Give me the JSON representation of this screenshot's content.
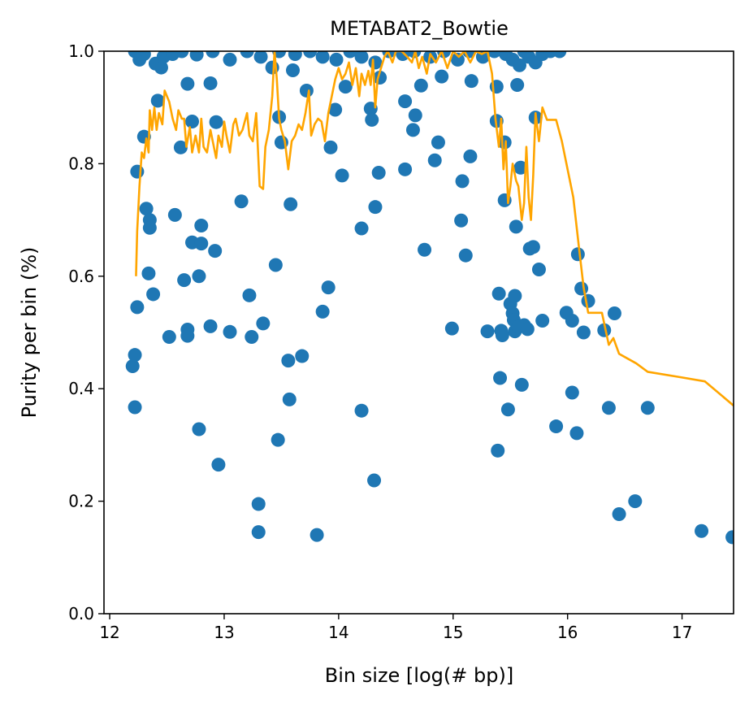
{
  "chart_data": {
    "type": "scatter",
    "title": "METABAT2_Bowtie",
    "xlabel": "Bin size [log(# bp)]",
    "ylabel": "Purity per bin (%)",
    "xlim": [
      11.95,
      17.45
    ],
    "ylim": [
      0.0,
      1.0
    ],
    "xticks": [
      12,
      13,
      14,
      15,
      16,
      17
    ],
    "xtick_labels": [
      "12",
      "13",
      "14",
      "15",
      "16",
      "17"
    ],
    "yticks": [
      0.0,
      0.2,
      0.4,
      0.6,
      0.8,
      1.0
    ],
    "ytick_labels": [
      "0.0",
      "0.2",
      "0.4",
      "0.6",
      "0.8",
      "1.0"
    ],
    "grid": false,
    "colors": {
      "points": "#1f77b4",
      "line": "#ffa500"
    },
    "series": [
      {
        "kind": "scatter",
        "points": [
          [
            12.24,
            0.786
          ],
          [
            12.2,
            0.44
          ],
          [
            12.22,
            0.46
          ],
          [
            12.22,
            0.367
          ],
          [
            12.24,
            0.545
          ],
          [
            12.3,
            0.848
          ],
          [
            12.32,
            0.72
          ],
          [
            12.35,
            0.7
          ],
          [
            12.35,
            0.686
          ],
          [
            12.34,
            0.605
          ],
          [
            12.38,
            0.568
          ],
          [
            12.42,
            0.912
          ],
          [
            12.45,
            0.971
          ],
          [
            12.52,
            0.492
          ],
          [
            12.57,
            0.709
          ],
          [
            12.62,
            0.829
          ],
          [
            12.65,
            0.593
          ],
          [
            12.68,
            0.942
          ],
          [
            12.68,
            0.505
          ],
          [
            12.68,
            0.494
          ],
          [
            12.72,
            0.875
          ],
          [
            12.72,
            0.66
          ],
          [
            12.78,
            0.328
          ],
          [
            12.78,
            0.6
          ],
          [
            12.8,
            0.69
          ],
          [
            12.8,
            0.658
          ],
          [
            12.88,
            0.943
          ],
          [
            12.88,
            0.511
          ],
          [
            12.92,
            0.645
          ],
          [
            12.93,
            0.874
          ],
          [
            12.95,
            0.265
          ],
          [
            13.05,
            0.501
          ],
          [
            13.15,
            0.733
          ],
          [
            13.22,
            0.566
          ],
          [
            13.24,
            0.492
          ],
          [
            13.3,
            0.195
          ],
          [
            13.3,
            0.145
          ],
          [
            13.34,
            0.516
          ],
          [
            13.42,
            0.971
          ],
          [
            13.45,
            0.62
          ],
          [
            13.47,
            0.309
          ],
          [
            13.48,
            0.883
          ],
          [
            13.5,
            0.838
          ],
          [
            13.56,
            0.45
          ],
          [
            13.57,
            0.381
          ],
          [
            13.58,
            0.728
          ],
          [
            13.6,
            0.966
          ],
          [
            13.68,
            0.458
          ],
          [
            13.72,
            0.93
          ],
          [
            13.81,
            0.14
          ],
          [
            13.86,
            0.537
          ],
          [
            13.91,
            0.58
          ],
          [
            13.93,
            0.829
          ],
          [
            13.97,
            0.896
          ],
          [
            14.03,
            0.779
          ],
          [
            14.06,
            0.937
          ],
          [
            14.2,
            0.685
          ],
          [
            14.2,
            0.361
          ],
          [
            14.28,
            0.898
          ],
          [
            14.29,
            0.878
          ],
          [
            14.31,
            0.237
          ],
          [
            14.32,
            0.723
          ],
          [
            14.35,
            0.784
          ],
          [
            14.36,
            0.953
          ],
          [
            14.58,
            0.911
          ],
          [
            14.58,
            0.79
          ],
          [
            14.65,
            0.86
          ],
          [
            14.67,
            0.886
          ],
          [
            14.72,
            0.939
          ],
          [
            14.75,
            0.647
          ],
          [
            14.84,
            0.806
          ],
          [
            14.87,
            0.838
          ],
          [
            14.9,
            0.955
          ],
          [
            14.99,
            0.507
          ],
          [
            15.07,
            0.699
          ],
          [
            15.08,
            0.769
          ],
          [
            15.11,
            0.637
          ],
          [
            15.15,
            0.813
          ],
          [
            15.16,
            0.947
          ],
          [
            15.3,
            0.502
          ],
          [
            15.38,
            0.876
          ],
          [
            15.38,
            0.937
          ],
          [
            15.39,
            0.29
          ],
          [
            15.4,
            0.569
          ],
          [
            15.41,
            0.419
          ],
          [
            15.42,
            0.503
          ],
          [
            15.43,
            0.495
          ],
          [
            15.45,
            0.838
          ],
          [
            15.45,
            0.735
          ],
          [
            15.48,
            0.363
          ],
          [
            15.5,
            0.551
          ],
          [
            15.52,
            0.534
          ],
          [
            15.53,
            0.522
          ],
          [
            15.54,
            0.565
          ],
          [
            15.54,
            0.502
          ],
          [
            15.55,
            0.688
          ],
          [
            15.56,
            0.94
          ],
          [
            15.57,
            0.51
          ],
          [
            15.59,
            0.793
          ],
          [
            15.6,
            0.407
          ],
          [
            15.62,
            0.513
          ],
          [
            15.65,
            0.506
          ],
          [
            15.67,
            0.649
          ],
          [
            15.7,
            0.652
          ],
          [
            15.72,
            0.882
          ],
          [
            15.75,
            0.612
          ],
          [
            15.78,
            0.521
          ],
          [
            15.9,
            0.333
          ],
          [
            15.99,
            0.535
          ],
          [
            16.04,
            0.393
          ],
          [
            16.04,
            0.521
          ],
          [
            16.08,
            0.321
          ],
          [
            16.09,
            0.639
          ],
          [
            16.12,
            0.578
          ],
          [
            16.14,
            0.5
          ],
          [
            16.18,
            0.556
          ],
          [
            16.32,
            0.504
          ],
          [
            16.36,
            0.366
          ],
          [
            16.41,
            0.534
          ],
          [
            16.45,
            0.177
          ],
          [
            16.59,
            0.2
          ],
          [
            16.7,
            0.366
          ],
          [
            17.17,
            0.147
          ],
          [
            17.44,
            0.136
          ],
          [
            12.22,
            1.0
          ],
          [
            12.26,
            0.985
          ],
          [
            12.3,
            0.995
          ],
          [
            12.4,
            0.978
          ],
          [
            12.47,
            0.99
          ],
          [
            12.55,
            0.995
          ],
          [
            12.63,
            1.0
          ],
          [
            12.76,
            0.994
          ],
          [
            12.9,
            1.0
          ],
          [
            13.05,
            0.985
          ],
          [
            13.2,
            1.0
          ],
          [
            13.32,
            0.99
          ],
          [
            13.48,
            1.0
          ],
          [
            13.62,
            0.995
          ],
          [
            13.75,
            1.0
          ],
          [
            13.86,
            0.99
          ],
          [
            13.98,
            0.985
          ],
          [
            14.1,
            1.0
          ],
          [
            14.2,
            0.99
          ],
          [
            14.32,
            0.98
          ],
          [
            14.44,
            1.0
          ],
          [
            14.56,
            0.995
          ],
          [
            14.66,
            1.0
          ],
          [
            14.8,
            0.99
          ],
          [
            14.92,
            1.0
          ],
          [
            15.04,
            0.985
          ],
          [
            15.14,
            1.0
          ],
          [
            15.26,
            0.99
          ],
          [
            15.36,
            1.0
          ],
          [
            15.46,
            0.995
          ],
          [
            15.52,
            0.985
          ],
          [
            15.58,
            0.975
          ],
          [
            15.62,
            1.0
          ],
          [
            15.66,
            0.99
          ],
          [
            15.72,
            0.98
          ],
          [
            15.78,
            0.995
          ],
          [
            15.85,
            1.0
          ],
          [
            15.93,
            1.0
          ]
        ]
      },
      {
        "kind": "line",
        "points": [
          [
            12.23,
            0.6
          ],
          [
            12.24,
            0.68
          ],
          [
            12.26,
            0.76
          ],
          [
            12.28,
            0.82
          ],
          [
            12.3,
            0.81
          ],
          [
            12.32,
            0.845
          ],
          [
            12.34,
            0.82
          ],
          [
            12.35,
            0.895
          ],
          [
            12.37,
            0.86
          ],
          [
            12.39,
            0.9
          ],
          [
            12.41,
            0.86
          ],
          [
            12.43,
            0.89
          ],
          [
            12.46,
            0.87
          ],
          [
            12.48,
            0.93
          ],
          [
            12.52,
            0.91
          ],
          [
            12.55,
            0.88
          ],
          [
            12.58,
            0.86
          ],
          [
            12.6,
            0.895
          ],
          [
            12.63,
            0.88
          ],
          [
            12.65,
            0.88
          ],
          [
            12.67,
            0.83
          ],
          [
            12.7,
            0.865
          ],
          [
            12.72,
            0.82
          ],
          [
            12.75,
            0.85
          ],
          [
            12.78,
            0.82
          ],
          [
            12.8,
            0.88
          ],
          [
            12.82,
            0.83
          ],
          [
            12.85,
            0.82
          ],
          [
            12.88,
            0.86
          ],
          [
            12.9,
            0.84
          ],
          [
            12.93,
            0.81
          ],
          [
            12.95,
            0.85
          ],
          [
            12.98,
            0.83
          ],
          [
            13.0,
            0.875
          ],
          [
            13.02,
            0.85
          ],
          [
            13.05,
            0.82
          ],
          [
            13.08,
            0.87
          ],
          [
            13.1,
            0.88
          ],
          [
            13.13,
            0.85
          ],
          [
            13.16,
            0.86
          ],
          [
            13.2,
            0.89
          ],
          [
            13.22,
            0.85
          ],
          [
            13.25,
            0.84
          ],
          [
            13.28,
            0.89
          ],
          [
            13.31,
            0.76
          ],
          [
            13.34,
            0.755
          ],
          [
            13.36,
            0.83
          ],
          [
            13.39,
            0.86
          ],
          [
            13.42,
            0.92
          ],
          [
            13.44,
            1.0
          ],
          [
            13.46,
            0.95
          ],
          [
            13.48,
            0.88
          ],
          [
            13.5,
            0.86
          ],
          [
            13.53,
            0.84
          ],
          [
            13.56,
            0.79
          ],
          [
            13.59,
            0.84
          ],
          [
            13.62,
            0.85
          ],
          [
            13.65,
            0.87
          ],
          [
            13.68,
            0.86
          ],
          [
            13.71,
            0.89
          ],
          [
            13.74,
            0.93
          ],
          [
            13.76,
            0.85
          ],
          [
            13.79,
            0.87
          ],
          [
            13.82,
            0.88
          ],
          [
            13.85,
            0.875
          ],
          [
            13.88,
            0.84
          ],
          [
            13.91,
            0.89
          ],
          [
            13.94,
            0.92
          ],
          [
            13.97,
            0.95
          ],
          [
            14.0,
            0.97
          ],
          [
            14.03,
            0.95
          ],
          [
            14.06,
            0.96
          ],
          [
            14.09,
            0.98
          ],
          [
            14.12,
            0.94
          ],
          [
            14.15,
            0.97
          ],
          [
            14.18,
            0.92
          ],
          [
            14.2,
            0.96
          ],
          [
            14.23,
            0.94
          ],
          [
            14.26,
            0.965
          ],
          [
            14.28,
            0.94
          ],
          [
            14.3,
            0.985
          ],
          [
            14.32,
            0.9
          ],
          [
            14.34,
            0.95
          ],
          [
            14.37,
            0.97
          ],
          [
            14.4,
            0.99
          ],
          [
            14.43,
            1.0
          ],
          [
            14.47,
            0.98
          ],
          [
            14.5,
            1.0
          ],
          [
            14.55,
            1.0
          ],
          [
            14.6,
            0.99
          ],
          [
            14.64,
            0.98
          ],
          [
            14.67,
            1.0
          ],
          [
            14.7,
            0.97
          ],
          [
            14.73,
            0.99
          ],
          [
            14.77,
            0.96
          ],
          [
            14.8,
            0.995
          ],
          [
            14.85,
            0.98
          ],
          [
            14.9,
            1.0
          ],
          [
            14.95,
            0.97
          ],
          [
            15.0,
            1.0
          ],
          [
            15.05,
            0.99
          ],
          [
            15.1,
            1.0
          ],
          [
            15.15,
            0.98
          ],
          [
            15.2,
            1.0
          ],
          [
            15.25,
            0.995
          ],
          [
            15.3,
            1.0
          ],
          [
            15.34,
            0.96
          ],
          [
            15.37,
            0.88
          ],
          [
            15.4,
            0.83
          ],
          [
            15.42,
            0.88
          ],
          [
            15.44,
            0.79
          ],
          [
            15.46,
            0.84
          ],
          [
            15.48,
            0.73
          ],
          [
            15.5,
            0.76
          ],
          [
            15.52,
            0.8
          ],
          [
            15.55,
            0.77
          ],
          [
            15.57,
            0.76
          ],
          [
            15.6,
            0.7
          ],
          [
            15.62,
            0.73
          ],
          [
            15.64,
            0.83
          ],
          [
            15.66,
            0.74
          ],
          [
            15.68,
            0.7
          ],
          [
            15.7,
            0.78
          ],
          [
            15.72,
            0.89
          ],
          [
            15.75,
            0.84
          ],
          [
            15.78,
            0.9
          ],
          [
            15.82,
            0.878
          ],
          [
            15.9,
            0.878
          ],
          [
            15.95,
            0.84
          ],
          [
            16.0,
            0.79
          ],
          [
            16.05,
            0.74
          ],
          [
            16.1,
            0.65
          ],
          [
            16.14,
            0.58
          ],
          [
            16.18,
            0.535
          ],
          [
            16.3,
            0.535
          ],
          [
            16.36,
            0.478
          ],
          [
            16.4,
            0.49
          ],
          [
            16.45,
            0.462
          ],
          [
            16.6,
            0.445
          ],
          [
            16.7,
            0.43
          ],
          [
            17.0,
            0.42
          ],
          [
            17.2,
            0.413
          ],
          [
            17.45,
            0.37
          ]
        ]
      }
    ]
  }
}
